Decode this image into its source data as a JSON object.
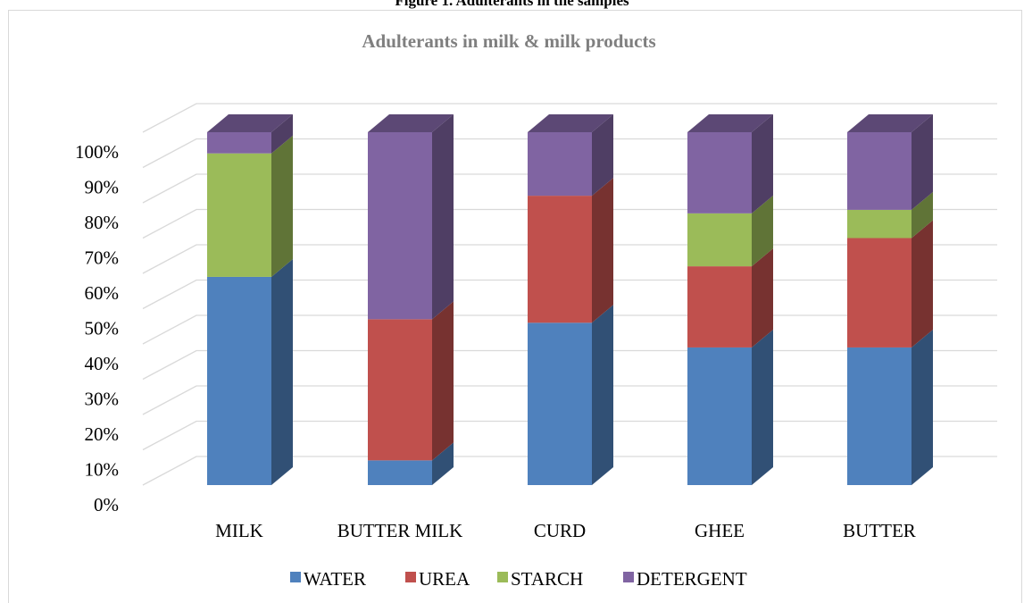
{
  "caption": "Figure 1. Adulterants in the samples",
  "colors": {
    "WATER": "#4f81bd",
    "UREA": "#c0504d",
    "STARCH": "#9bbb59",
    "DETERGENT": "#8064a2",
    "grid": "#d9d9d9"
  },
  "chart_data": {
    "type": "bar",
    "stacked": true,
    "percent_stacked": true,
    "three_d": true,
    "title": "Adulterants in milk & milk products",
    "categories": [
      "MILK",
      "BUTTER MILK",
      "CURD",
      "GHEE",
      "BUTTER"
    ],
    "series": [
      {
        "name": "WATER",
        "values": [
          59,
          7,
          46,
          39,
          39
        ]
      },
      {
        "name": "UREA",
        "values": [
          0,
          40,
          36,
          23,
          31
        ]
      },
      {
        "name": "STARCH",
        "values": [
          35,
          0,
          0,
          15,
          8
        ]
      },
      {
        "name": "DETERGENT",
        "values": [
          6,
          53,
          18,
          23,
          22
        ]
      }
    ],
    "y_ticks": [
      "0%",
      "10%",
      "20%",
      "30%",
      "40%",
      "50%",
      "60%",
      "70%",
      "80%",
      "90%",
      "100%"
    ],
    "ylim": [
      0,
      100
    ],
    "xlabel": "",
    "ylabel": "",
    "grid": true,
    "legend_position": "bottom"
  }
}
